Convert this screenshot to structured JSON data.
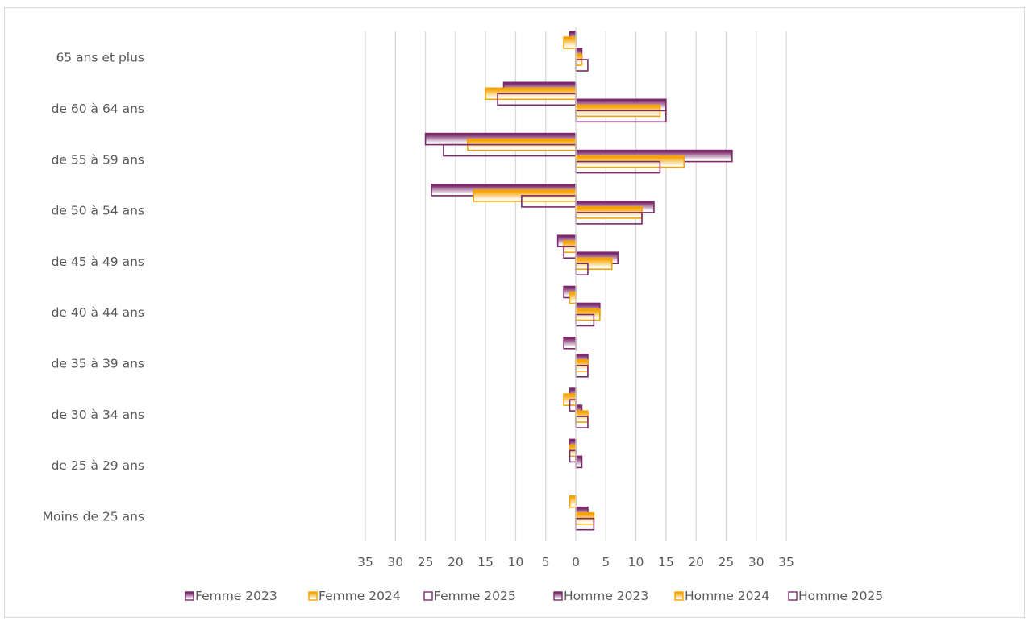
{
  "colors": {
    "purple": "#7b2a6b",
    "orange": "#f5a300",
    "grid": "#d9d9d9"
  },
  "chart_data": {
    "type": "bar",
    "orientation": "horizontal",
    "layout": "population-pyramid",
    "categories": [
      "Moins de 25 ans",
      "de 25 à 29 ans",
      "de 30 à 34 ans",
      "de 35 à 39 ans",
      "de 40 à 44 ans",
      "de 45 à 49 ans",
      "de 50 à 54 ans",
      "de 55 à 59 ans",
      "de 60 à 64 ans",
      "65 ans et plus"
    ],
    "xlim": [
      -35,
      35
    ],
    "xticks": [
      -35,
      -30,
      -25,
      -20,
      -15,
      -10,
      -5,
      0,
      5,
      10,
      15,
      20,
      25,
      30,
      35
    ],
    "xtick_labels": [
      "35",
      "30",
      "25",
      "20",
      "15",
      "10",
      "5",
      "0",
      "5",
      "10",
      "15",
      "20",
      "25",
      "30",
      "35"
    ],
    "grid": "vertical",
    "legend_position": "bottom",
    "series": [
      {
        "name": "Femme 2023",
        "side": "left",
        "style": "gradient",
        "color": "#7b2a6b",
        "values": [
          0,
          1,
          1,
          2,
          2,
          3,
          24,
          25,
          12,
          1
        ]
      },
      {
        "name": "Femme 2024",
        "side": "left",
        "style": "gradient",
        "color": "#f5a300",
        "values": [
          1,
          1,
          2,
          0,
          1,
          2,
          17,
          18,
          15,
          2
        ]
      },
      {
        "name": "Femme 2025",
        "side": "left",
        "style": "outline",
        "color": "#7b2a6b",
        "values": [
          0,
          1,
          1,
          0,
          0,
          2,
          9,
          22,
          13,
          0
        ]
      },
      {
        "name": "Homme 2023",
        "side": "right",
        "style": "gradient",
        "color": "#7b2a6b",
        "values": [
          2,
          1,
          1,
          2,
          4,
          7,
          13,
          26,
          15,
          1
        ]
      },
      {
        "name": "Homme 2024",
        "side": "right",
        "style": "gradient",
        "color": "#f5a300",
        "values": [
          3,
          0,
          2,
          2,
          4,
          6,
          11,
          18,
          14,
          1
        ]
      },
      {
        "name": "Homme 2025",
        "side": "right",
        "style": "outline",
        "color": "#7b2a6b",
        "values": [
          3,
          0,
          2,
          2,
          3,
          2,
          11,
          14,
          15,
          2
        ]
      }
    ]
  }
}
